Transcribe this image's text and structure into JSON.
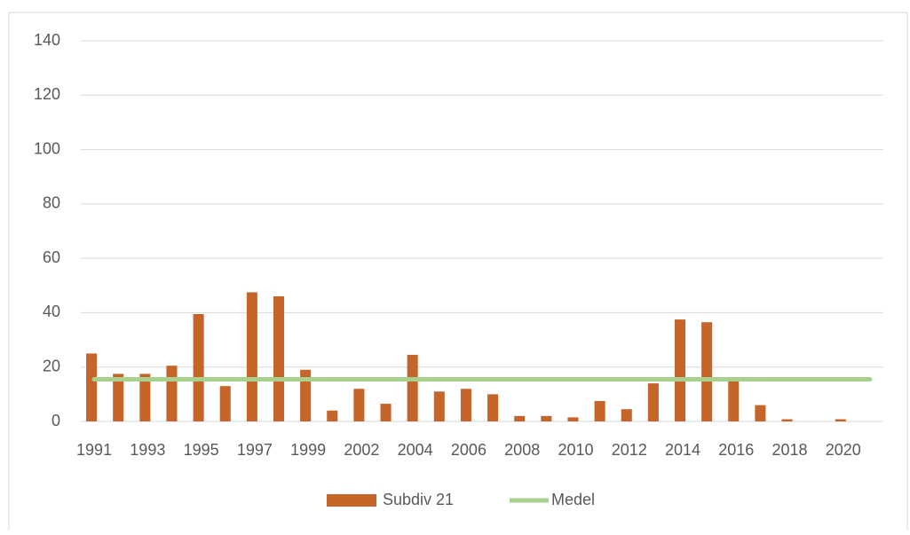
{
  "chart_data": {
    "type": "bar_line",
    "categories": [
      "1991",
      null,
      "1993",
      null,
      "1995",
      null,
      "1997",
      null,
      "1999",
      null,
      "2002",
      null,
      "2004",
      null,
      "2006",
      null,
      "2008",
      null,
      "2010",
      null,
      "2012",
      null,
      "2014",
      null,
      "2016",
      null,
      "2018",
      null,
      "2020",
      null
    ],
    "series": [
      {
        "name": "Subdiv 21",
        "type": "bar",
        "color": "#c5652a",
        "values": [
          25,
          17.5,
          17.5,
          20.5,
          39.5,
          13,
          47.5,
          46,
          19,
          4,
          12,
          6.5,
          24.5,
          11,
          12,
          10,
          2,
          2,
          1.5,
          7.5,
          4.5,
          14,
          37.5,
          36.5,
          15,
          6,
          0.8,
          0,
          0.8,
          0
        ]
      },
      {
        "name": "Medel",
        "type": "line",
        "color": "#a9d18e",
        "values": [
          15.5,
          15.5,
          15.5,
          15.5,
          15.5,
          15.5,
          15.5,
          15.5,
          15.5,
          15.5,
          15.5,
          15.5,
          15.5,
          15.5,
          15.5,
          15.5,
          15.5,
          15.5,
          15.5,
          15.5,
          15.5,
          15.5,
          15.5,
          15.5,
          15.5,
          15.5,
          15.5,
          15.5,
          15.5,
          15.5
        ]
      }
    ],
    "ylim": [
      0,
      140
    ],
    "yticks": [
      0,
      20,
      40,
      60,
      80,
      100,
      120,
      140
    ],
    "grid": true,
    "legend": "bottom"
  }
}
